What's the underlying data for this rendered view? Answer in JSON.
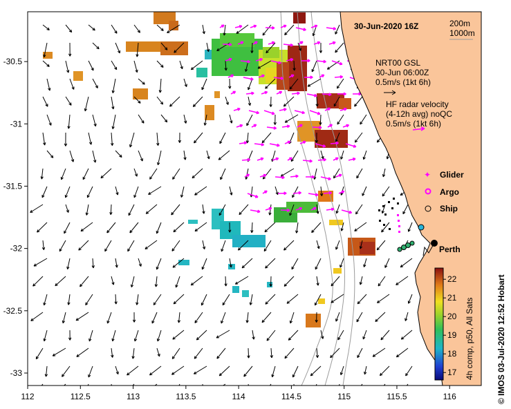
{
  "title": "30-Jun-2020 16Z",
  "depth_contours": [
    "200m",
    "1000m"
  ],
  "model_legend": {
    "line1": "NRT00 GSL",
    "line2": "30-Jun 06:00Z",
    "line3": "0.5m/s (1kt 6h)"
  },
  "radar_legend": {
    "line1": "HF radar velocity",
    "line2": "(4-12h avg) noQC",
    "line3": "0.5m/s (1kt 6h)"
  },
  "platforms": [
    {
      "label": "Glider",
      "color": "#ff00ff"
    },
    {
      "label": "Argo",
      "color": "#ff00ff"
    },
    {
      "label": "Ship",
      "color": "#000000"
    }
  ],
  "city": "Perth",
  "colorbar": {
    "label": "4h comp, p50, All Sats",
    "ticks": [
      "17",
      "18",
      "19",
      "20",
      "21",
      "22"
    ],
    "min": 16.6,
    "max": 22.6
  },
  "credit": "© IMOS 03-Jul-2020 12:52 Hobart",
  "axes": {
    "lon_ticks": [
      "112",
      "112.5",
      "113",
      "113.5",
      "114",
      "114.5",
      "115",
      "115.5",
      "116"
    ],
    "lat_ticks": [
      "-30.5",
      "-31",
      "-31.5",
      "-32",
      "-32.5",
      "-33"
    ],
    "lon_range": [
      112,
      116.3
    ],
    "lat_range": [
      -33.1,
      -30.1
    ]
  },
  "colors": {
    "land": "#fac59a",
    "radar": "#ff00ff",
    "contour": "#9b9b9b"
  }
}
